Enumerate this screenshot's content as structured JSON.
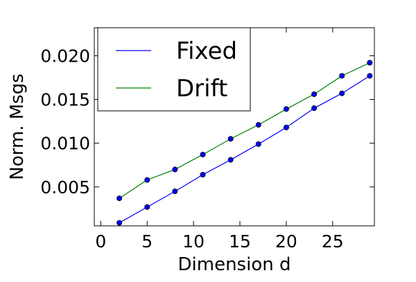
{
  "chart_data": {
    "type": "line",
    "title": "",
    "xlabel": "Dimension d",
    "ylabel": "Norm. Msgs",
    "xlim": [
      -0.7,
      29.5
    ],
    "ylim": [
      0.00055,
      0.0232
    ],
    "xticks": [
      0,
      5,
      10,
      15,
      20,
      25
    ],
    "xtick_labels": [
      "0",
      "5",
      "10",
      "15",
      "20",
      "25"
    ],
    "yticks": [
      0.005,
      0.01,
      0.015,
      0.02
    ],
    "ytick_labels": [
      "0.005",
      "0.010",
      "0.015",
      "0.020"
    ],
    "grid": false,
    "legend_position": "top-left",
    "x": [
      2,
      5,
      8,
      11,
      14,
      17,
      20,
      23,
      26,
      29
    ],
    "series": [
      {
        "name": "Fixed",
        "color": "#0000ff",
        "values": [
          0.0009,
          0.0027,
          0.0045,
          0.0064,
          0.0081,
          0.0099,
          0.0118,
          0.014,
          0.0157,
          0.0177
        ]
      },
      {
        "name": "Drift",
        "color": "#008000",
        "values": [
          0.0037,
          0.0058,
          0.007,
          0.0087,
          0.0105,
          0.0121,
          0.0139,
          0.0156,
          0.0177,
          0.0192
        ]
      }
    ],
    "marker_color": "#0000ff"
  }
}
